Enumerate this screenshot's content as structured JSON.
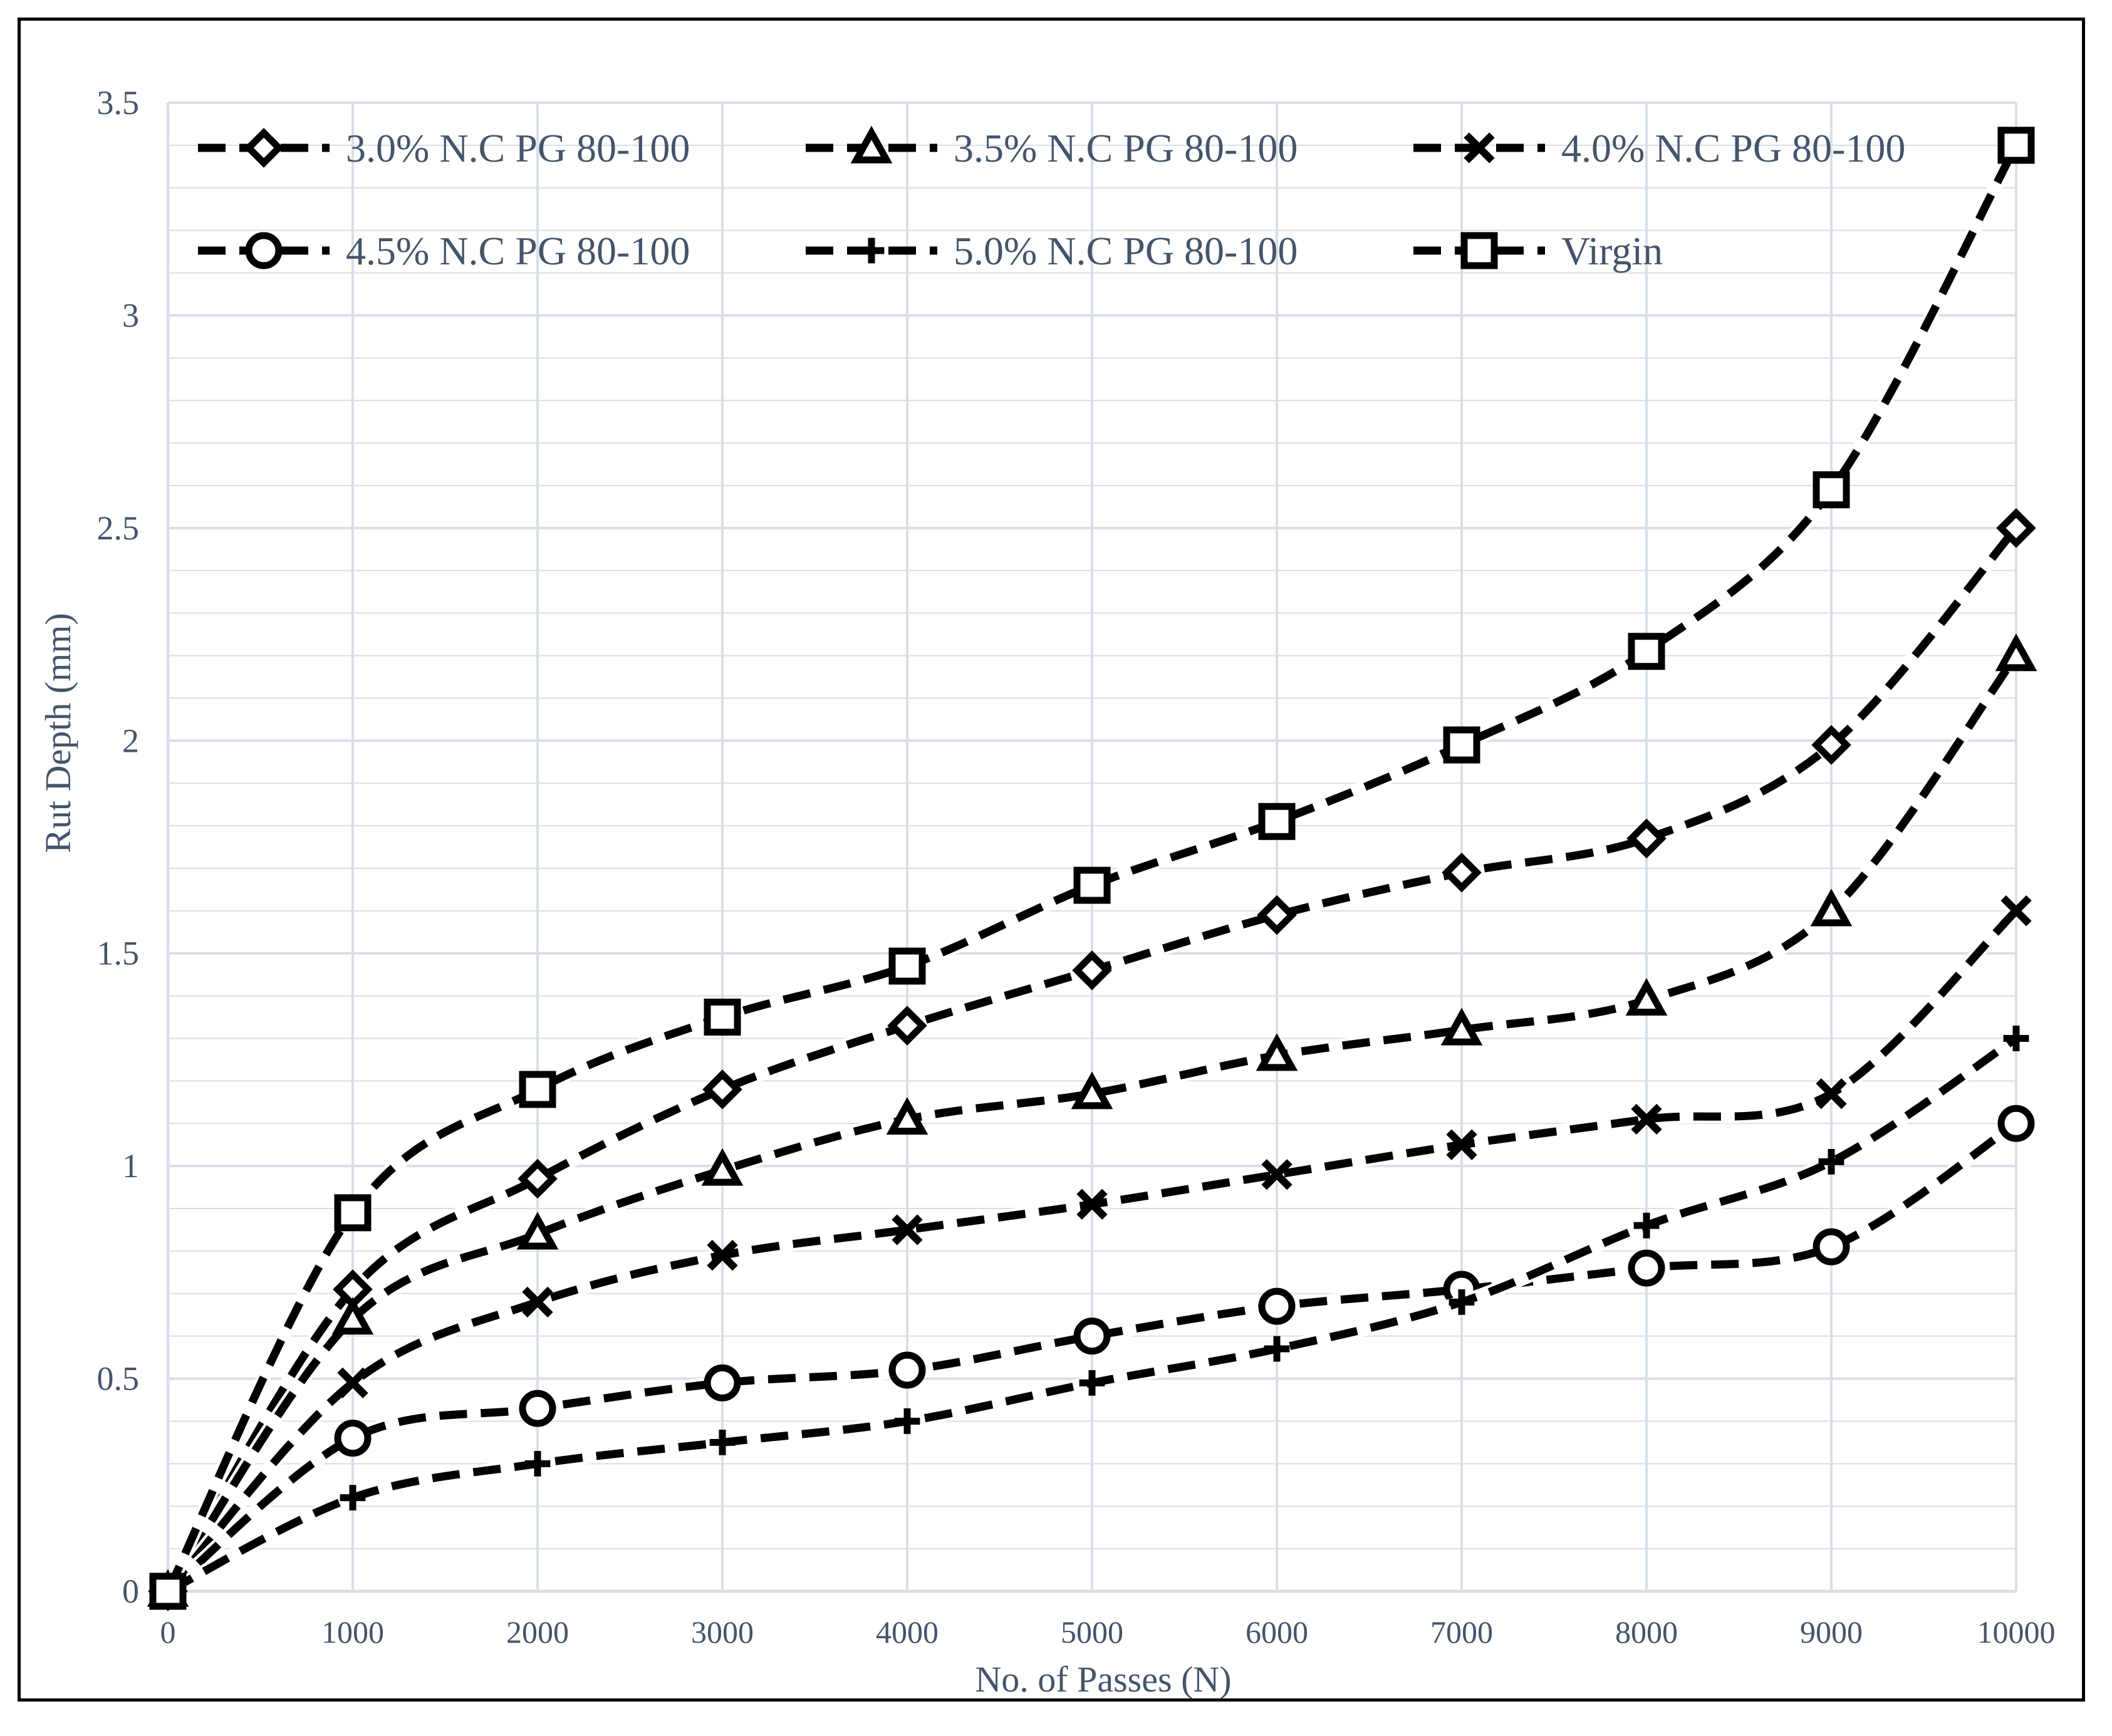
{
  "chart_data": {
    "type": "line",
    "title": "",
    "xlabel": "No. of Passes (N)",
    "ylabel": "Rut Depth (mm)",
    "x": [
      0,
      1000,
      2000,
      3000,
      4000,
      5000,
      6000,
      7000,
      8000,
      9000,
      10000
    ],
    "xlim": [
      0,
      10000
    ],
    "ylim": [
      0,
      3.5
    ],
    "xticks": [
      "0",
      "1000",
      "2000",
      "3000",
      "4000",
      "5000",
      "6000",
      "7000",
      "8000",
      "9000",
      "10000"
    ],
    "yticks": [
      "0",
      "0.5",
      "1",
      "1.5",
      "2",
      "2.5",
      "3",
      "3.5"
    ],
    "grid": true,
    "legend_position": "top (inside plot)",
    "series": [
      {
        "name": "3.0% N.C PG 80-100",
        "marker": "diamond",
        "values": [
          0,
          0.71,
          0.97,
          1.18,
          1.33,
          1.46,
          1.59,
          1.69,
          1.77,
          1.99,
          2.5
        ]
      },
      {
        "name": "3.5% N.C PG 80-100",
        "marker": "triangle",
        "values": [
          0,
          0.64,
          0.84,
          0.99,
          1.11,
          1.17,
          1.26,
          1.32,
          1.39,
          1.6,
          2.2
        ]
      },
      {
        "name": "4.0% N.C PG 80-100",
        "marker": "x",
        "values": [
          0,
          0.49,
          0.68,
          0.79,
          0.85,
          0.91,
          0.98,
          1.05,
          1.11,
          1.17,
          1.6
        ]
      },
      {
        "name": "4.5% N.C PG 80-100",
        "marker": "circle",
        "values": [
          0,
          0.36,
          0.43,
          0.49,
          0.52,
          0.6,
          0.67,
          0.71,
          0.76,
          0.81,
          1.1
        ]
      },
      {
        "name": "5.0% N.C PG 80-100",
        "marker": "plus",
        "values": [
          0,
          0.22,
          0.3,
          0.35,
          0.4,
          0.49,
          0.57,
          0.68,
          0.86,
          1.01,
          1.3
        ]
      },
      {
        "name": "Virgin",
        "marker": "square",
        "values": [
          0,
          0.89,
          1.18,
          1.35,
          1.47,
          1.66,
          1.81,
          1.99,
          2.21,
          2.59,
          3.4
        ]
      }
    ],
    "colors": {
      "series": "#000000",
      "axis_text": "#44546a",
      "grid": "#d9dee7",
      "frame": "#000000"
    }
  }
}
